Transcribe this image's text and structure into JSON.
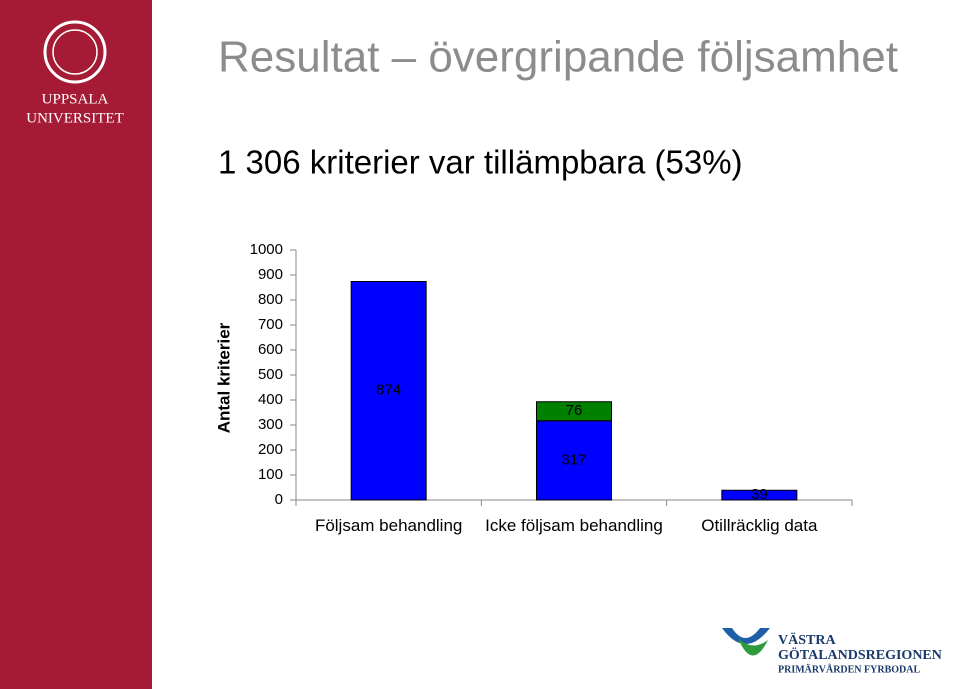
{
  "logo": {
    "line1": "UPPSALA",
    "line2": "UNIVERSITET"
  },
  "title": "Resultat – övergripande följsamhet",
  "subtitle": "1 306 kriterier var tillämpbara (53%)",
  "footer_logo": {
    "line1": "VÄSTRA",
    "line2": "GÖTALANDSREGIONEN",
    "line3": "PRIMÄRVÅRDEN FYRBODAL"
  },
  "chart_data": {
    "type": "stacked_bar",
    "y_label": "Antal kriterier",
    "categories": [
      "Följsam behandling",
      "Icke följsam behandling",
      "Otillräcklig data"
    ],
    "series": [
      {
        "color": "#0000ff",
        "values": [
          874,
          317,
          39
        ]
      },
      {
        "color": "#008000",
        "values": [
          null,
          76,
          null
        ]
      }
    ],
    "ylim": [
      0,
      1000
    ],
    "yticks": [
      0,
      100,
      200,
      300,
      400,
      500,
      600,
      700,
      800,
      900,
      1000
    ]
  }
}
